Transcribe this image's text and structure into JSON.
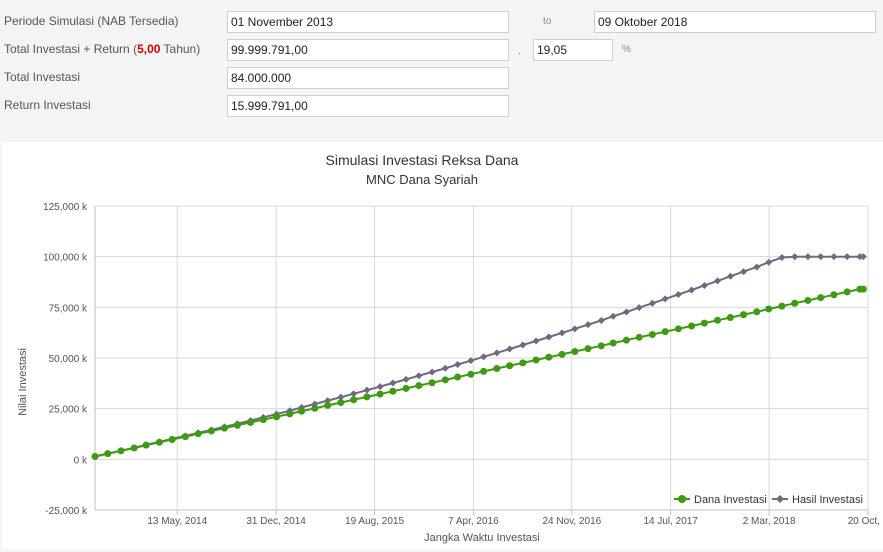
{
  "form": {
    "periode_label": "Periode Simulasi (NAB Tersedia)",
    "start_date": "01 November 2013",
    "to_label": "to",
    "end_date": "09 Oktober 2018",
    "total_label_pre": "Total Investasi + Return (",
    "total_label_years": "5,00",
    "total_label_post": " Tahun)",
    "total_value": "99.999.791,00",
    "dot": ".",
    "percent_value": "19,05",
    "percent_sign": "%",
    "investasi_label": "Total Investasi",
    "investasi_value": "84.000.000",
    "return_label": "Return Investasi",
    "return_value": "15.999.791,00"
  },
  "colors": {
    "dana": "#3d9a12",
    "hasil": "#72687f",
    "grid": "#d8d8d8",
    "title": "#333333"
  },
  "chart_data": {
    "type": "line",
    "title": "Simulasi Investasi Reksa Dana",
    "subtitle": "MNC Dana Syariah",
    "xlabel": "Jangka Waktu Investasi",
    "ylabel": "Nilai Investasi",
    "ylim": [
      -25000,
      125000
    ],
    "yticks": [
      -25000,
      0,
      25000,
      50000,
      75000,
      100000,
      125000
    ],
    "ytick_labels": [
      "-25,000 k",
      "0 k",
      "25,000 k",
      "50,000 k",
      "75,000 k",
      "100,000 k",
      "125,000 k"
    ],
    "xlim": [
      "2013-11-01",
      "2018-10-20"
    ],
    "xticks": [
      "2014-05-13",
      "2014-12-31",
      "2015-08-19",
      "2016-04-07",
      "2016-11-24",
      "2017-07-14",
      "2018-03-02",
      "2018-10-20"
    ],
    "xtick_labels": [
      "13 May, 2014",
      "31 Dec, 2014",
      "19 Aug, 2015",
      "7 Apr, 2016",
      "24 Nov, 2016",
      "14 Jul, 2017",
      "2 Mar, 2018",
      "20 Oct, 2"
    ],
    "legend": "bottom-right",
    "grid": true,
    "series": [
      {
        "name": "Dana Investasi",
        "color": "#3d9a12",
        "marker": "circle",
        "dates": [
          "2013-11-01",
          "2013-12-01",
          "2014-01-01",
          "2014-02-01",
          "2014-03-01",
          "2014-04-01",
          "2014-05-01",
          "2014-06-01",
          "2014-07-01",
          "2014-08-01",
          "2014-09-01",
          "2014-10-01",
          "2014-11-01",
          "2014-12-01",
          "2015-01-01",
          "2015-02-01",
          "2015-03-01",
          "2015-04-01",
          "2015-05-01",
          "2015-06-01",
          "2015-07-01",
          "2015-08-01",
          "2015-09-01",
          "2015-10-01",
          "2015-11-01",
          "2015-12-01",
          "2016-01-01",
          "2016-02-01",
          "2016-03-01",
          "2016-04-01",
          "2016-05-01",
          "2016-06-01",
          "2016-07-01",
          "2016-08-01",
          "2016-09-01",
          "2016-10-01",
          "2016-11-01",
          "2016-12-01",
          "2017-01-01",
          "2017-02-01",
          "2017-03-01",
          "2017-04-01",
          "2017-05-01",
          "2017-06-01",
          "2017-07-01",
          "2017-08-01",
          "2017-09-01",
          "2017-10-01",
          "2017-11-01",
          "2017-12-01",
          "2018-01-01",
          "2018-02-01",
          "2018-03-01",
          "2018-04-01",
          "2018-05-01",
          "2018-06-01",
          "2018-07-01",
          "2018-08-01",
          "2018-09-01",
          "2018-10-01",
          "2018-10-09"
        ],
        "values": [
          1400,
          2800,
          4200,
          5600,
          7000,
          8400,
          9800,
          11200,
          12600,
          14000,
          15400,
          16800,
          18200,
          19600,
          21000,
          22400,
          23800,
          25200,
          26600,
          28000,
          29400,
          30800,
          32200,
          33600,
          35000,
          36400,
          37800,
          39200,
          40600,
          42000,
          43400,
          44800,
          46200,
          47600,
          49000,
          50400,
          51800,
          53200,
          54600,
          56000,
          57400,
          58800,
          60200,
          61600,
          63000,
          64400,
          65800,
          67200,
          68600,
          70000,
          71400,
          72800,
          74200,
          75600,
          77000,
          78400,
          79800,
          81200,
          82600,
          84000,
          84000
        ]
      },
      {
        "name": "Hasil Investasi",
        "color": "#72687f",
        "marker": "diamond",
        "dates": [
          "2013-11-01",
          "2013-12-01",
          "2014-01-01",
          "2014-02-01",
          "2014-03-01",
          "2014-04-01",
          "2014-05-01",
          "2014-06-01",
          "2014-07-01",
          "2014-08-01",
          "2014-09-01",
          "2014-10-01",
          "2014-11-01",
          "2014-12-01",
          "2015-01-01",
          "2015-02-01",
          "2015-03-01",
          "2015-04-01",
          "2015-05-01",
          "2015-06-01",
          "2015-07-01",
          "2015-08-01",
          "2015-09-01",
          "2015-10-01",
          "2015-11-01",
          "2015-12-01",
          "2016-01-01",
          "2016-02-01",
          "2016-03-01",
          "2016-04-01",
          "2016-05-01",
          "2016-06-01",
          "2016-07-01",
          "2016-08-01",
          "2016-09-01",
          "2016-10-01",
          "2016-11-01",
          "2016-12-01",
          "2017-01-01",
          "2017-02-01",
          "2017-03-01",
          "2017-04-01",
          "2017-05-01",
          "2017-06-01",
          "2017-07-01",
          "2017-08-01",
          "2017-09-01",
          "2017-10-01",
          "2017-11-01",
          "2017-12-01",
          "2018-01-01",
          "2018-02-01",
          "2018-03-01",
          "2018-04-01",
          "2018-05-01",
          "2018-06-01",
          "2018-07-01",
          "2018-08-01",
          "2018-09-01",
          "2018-10-01",
          "2018-10-09"
        ],
        "values": [
          1400,
          2810,
          4240,
          5680,
          7130,
          8590,
          10060,
          11540,
          13030,
          14530,
          16040,
          17570,
          19130,
          20720,
          22330,
          23960,
          25610,
          27280,
          28970,
          30670,
          32390,
          34130,
          35880,
          37650,
          39440,
          41250,
          43080,
          44930,
          46800,
          48690,
          50590,
          52510,
          54450,
          56400,
          58370,
          60360,
          62370,
          64400,
          66450,
          68520,
          70610,
          72720,
          74850,
          77000,
          79170,
          81360,
          83570,
          85800,
          88050,
          90320,
          92610,
          94920,
          97250,
          99600,
          99980,
          100000,
          100000,
          100000,
          100000,
          100000,
          100000
        ]
      }
    ]
  }
}
